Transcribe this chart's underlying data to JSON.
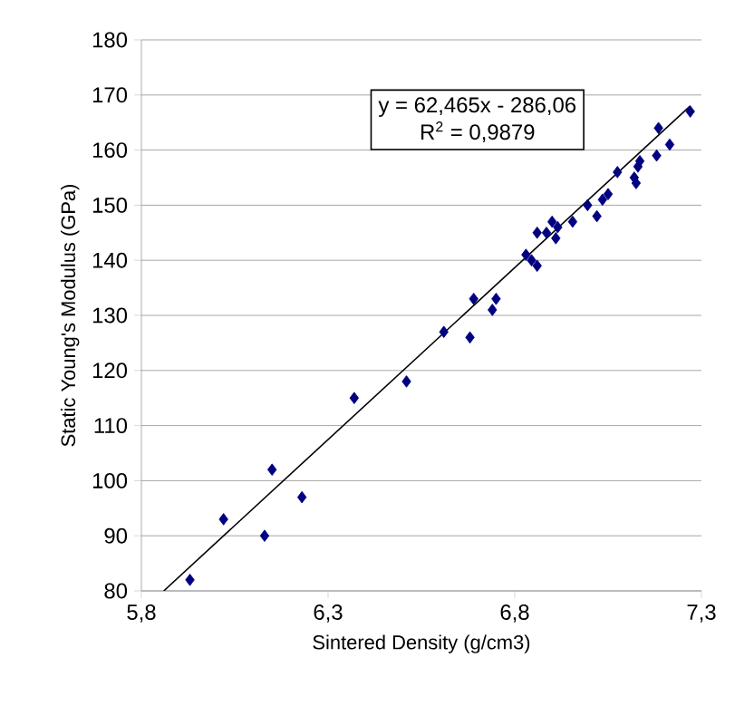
{
  "chart_data": {
    "type": "scatter",
    "xlabel": "Sintered Density (g/cm3)",
    "ylabel": "Static Young's Modulus (GPa)",
    "annotations": [
      "y = 62,465x - 286,06",
      "R$^{2}$ = 0,9879"
    ],
    "xlim": [
      5.8,
      7.3
    ],
    "ylim": [
      80,
      180
    ],
    "xticks": [
      {
        "value": 5.8,
        "label": "5,8"
      },
      {
        "value": 6.3,
        "label": "6,3"
      },
      {
        "value": 6.8,
        "label": "6,8"
      },
      {
        "value": 7.3,
        "label": "7,3"
      }
    ],
    "yticks": [
      80,
      90,
      100,
      110,
      120,
      130,
      140,
      150,
      160,
      170,
      180
    ],
    "grid": "y",
    "series": [
      {
        "marker": "diamond",
        "color": "#000080",
        "x": [
          5.93,
          6.02,
          6.13,
          6.15,
          6.23,
          6.37,
          6.51,
          6.61,
          6.68,
          6.69,
          6.74,
          6.75,
          6.83,
          6.845,
          6.86,
          6.86,
          6.885,
          6.9,
          6.91,
          6.915,
          6.955,
          6.995,
          7.02,
          7.035,
          7.05,
          7.075,
          7.12,
          7.125,
          7.13,
          7.135,
          7.18,
          7.185,
          7.215,
          7.27
        ],
        "values": [
          82,
          93,
          90,
          102,
          97,
          115,
          118,
          127,
          126,
          133,
          131,
          133,
          141,
          140,
          139,
          145,
          145,
          147,
          144,
          146,
          147,
          150,
          148,
          151,
          152,
          156,
          155,
          154,
          157,
          158,
          159,
          164,
          161,
          167
        ]
      },
      {
        "type": "line",
        "marker": "none",
        "line_style": "solid",
        "color": "#000000",
        "x": [
          5.86,
          7.27
        ],
        "values": [
          80,
          168
        ]
      }
    ]
  }
}
